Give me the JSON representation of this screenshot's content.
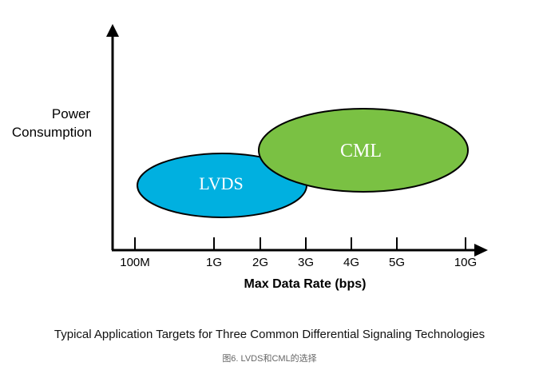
{
  "diagram": {
    "y_axis_label_line1": "Power",
    "y_axis_label_line2": "Consumption",
    "x_axis_label": "Max Data Rate (bps)",
    "x_ticks": [
      "100M",
      "1G",
      "2G",
      "3G",
      "4G",
      "5G",
      "10G"
    ],
    "regions": [
      {
        "label": "LVDS",
        "color": "#00b0e0"
      },
      {
        "label": "CML",
        "color": "#7ac143"
      }
    ]
  },
  "caption": "Typical Application Targets for Three Common Differential Signaling Technologies",
  "figure_caption": "图6. LVDS和CML的选择"
}
